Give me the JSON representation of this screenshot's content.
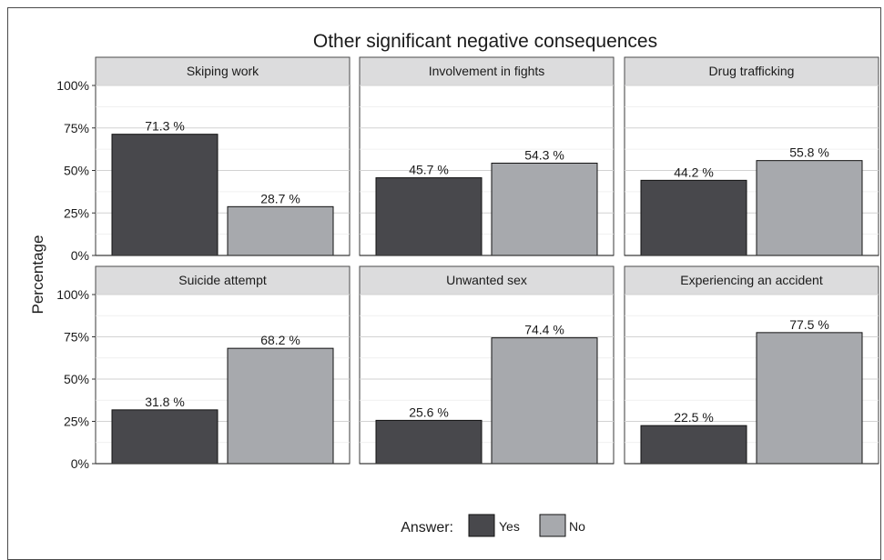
{
  "chart_data": {
    "type": "bar",
    "title": "Other significant negative consequences",
    "ylabel": "Percentage",
    "xlabel": "",
    "ylim": [
      0,
      100
    ],
    "y_ticks": [
      0,
      25,
      50,
      75,
      100
    ],
    "y_tick_labels": [
      "0%",
      "25%",
      "50%",
      "75%",
      "100%"
    ],
    "categories": [
      "Yes",
      "No"
    ],
    "grid": true,
    "legend_position": "bottom",
    "legend": {
      "title": "Answer:",
      "entries": [
        {
          "label": "Yes",
          "color": "#48484c"
        },
        {
          "label": "No",
          "color": "#a7a9ad"
        }
      ]
    },
    "panels": [
      {
        "title": "Skiping work",
        "values": [
          71.3,
          28.7
        ],
        "labels": [
          "71.3 %",
          "28.7 %"
        ]
      },
      {
        "title": "Involvement in fights",
        "values": [
          45.7,
          54.3
        ],
        "labels": [
          "45.7 %",
          "54.3 %"
        ]
      },
      {
        "title": "Drug trafficking",
        "values": [
          44.2,
          55.8
        ],
        "labels": [
          "44.2 %",
          "55.8 %"
        ]
      },
      {
        "title": "Suicide attempt",
        "values": [
          31.8,
          68.2
        ],
        "labels": [
          "31.8 %",
          "68.2 %"
        ]
      },
      {
        "title": "Unwanted sex",
        "values": [
          25.6,
          74.4
        ],
        "labels": [
          "25.6 %",
          "74.4 %"
        ]
      },
      {
        "title": "Experiencing an accident",
        "values": [
          22.5,
          77.5
        ],
        "labels": [
          "22.5 %",
          "77.5 %"
        ]
      }
    ]
  }
}
